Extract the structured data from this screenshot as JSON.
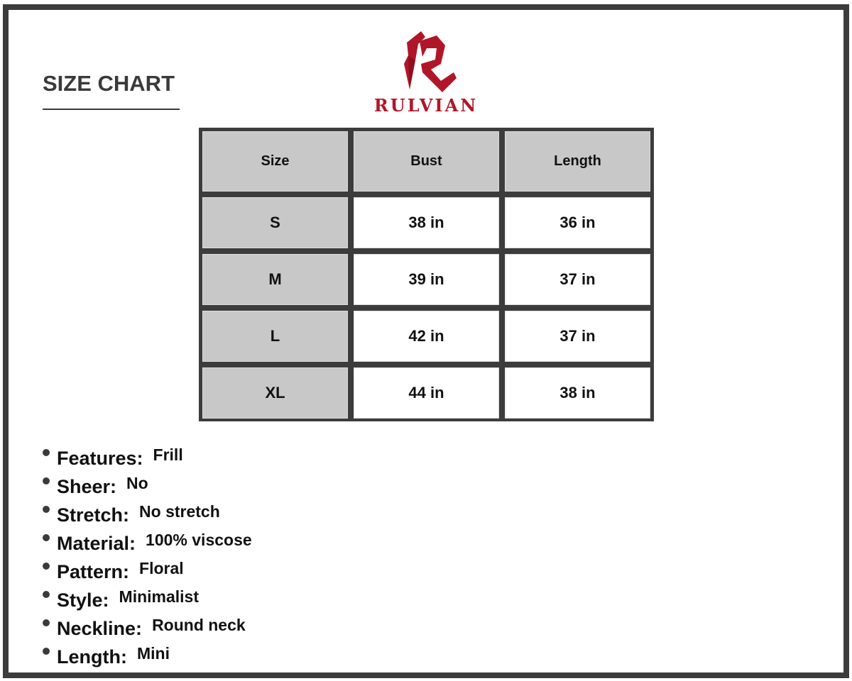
{
  "title": "SIZE CHART",
  "brand": {
    "name": "RULVIAN",
    "color": "#b01628"
  },
  "table": {
    "headers": [
      "Size",
      "Bust",
      "Length"
    ],
    "rows": [
      [
        "S",
        "38 in",
        "36 in"
      ],
      [
        "M",
        "39 in",
        "37 in"
      ],
      [
        "L",
        "42 in",
        "37 in"
      ],
      [
        "XL",
        "44 in",
        "38 in"
      ]
    ]
  },
  "features": [
    {
      "label": "Features:",
      "value": "Frill"
    },
    {
      "label": "Sheer:",
      "value": "No"
    },
    {
      "label": "Stretch:",
      "value": "No stretch"
    },
    {
      "label": "Material:",
      "value": "100% viscose"
    },
    {
      "label": "Pattern:",
      "value": "Floral"
    },
    {
      "label": "Style:",
      "value": "Minimalist"
    },
    {
      "label": "Neckline:",
      "value": "Round neck"
    },
    {
      "label": "Length:",
      "value": "Mini"
    }
  ]
}
